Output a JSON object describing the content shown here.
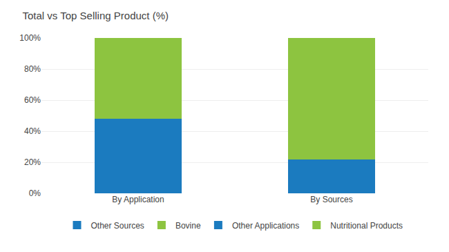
{
  "chart_data": {
    "type": "bar",
    "title": "Total vs Top Selling Product (%)",
    "categories": [
      "By Application",
      "By Sources"
    ],
    "stacked": true,
    "series": [
      {
        "name": "Other Sources",
        "color": "#1b7bbf",
        "values": [
          null,
          22
        ]
      },
      {
        "name": "Bovine",
        "color": "#8dc440",
        "values": [
          null,
          78
        ]
      },
      {
        "name": "Other Applications",
        "color": "#1b7bbf",
        "values": [
          48,
          null
        ]
      },
      {
        "name": "Nutritional Products",
        "color": "#8dc440",
        "values": [
          52,
          null
        ]
      }
    ],
    "ylim": [
      0,
      100
    ],
    "yticks": [
      {
        "value": 0,
        "label": "0%"
      },
      {
        "value": 20,
        "label": "20%"
      },
      {
        "value": 40,
        "label": "40%"
      },
      {
        "value": 60,
        "label": "60%"
      },
      {
        "value": 80,
        "label": "80%"
      },
      {
        "value": 100,
        "label": "100%"
      }
    ],
    "grid": true,
    "legend": "bottom"
  }
}
